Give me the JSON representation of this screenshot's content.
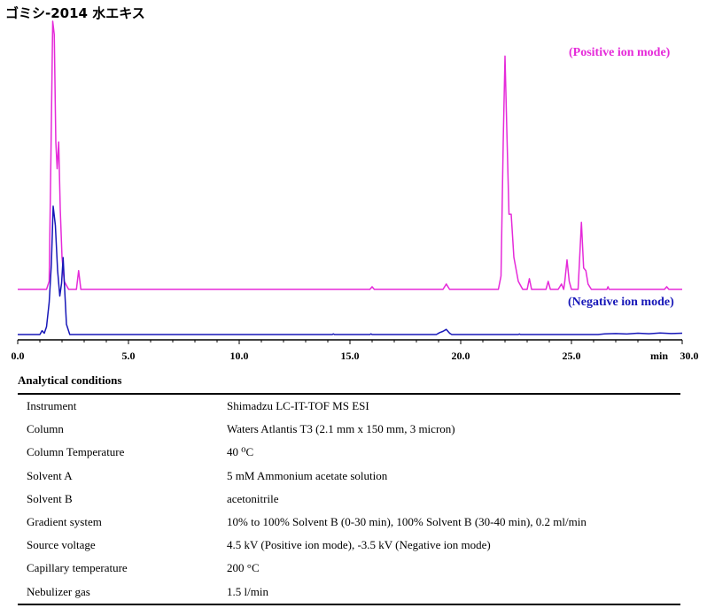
{
  "title": "ゴミシ-2014 水エキス",
  "chart_data": {
    "type": "line",
    "x_unit": "min",
    "xlim": [
      0.0,
      30.0
    ],
    "x_ticks": [
      "0.0",
      "5.0",
      "10.0",
      "15.0",
      "20.0",
      "25.0",
      "30.0"
    ],
    "y_ticks_shown": false,
    "series": [
      {
        "name": "(Positive ion mode)",
        "color": "#e52ad9",
        "baseline": 0.0,
        "points": [
          [
            0.0,
            0.0
          ],
          [
            1.3,
            0.0
          ],
          [
            1.42,
            0.03
          ],
          [
            1.5,
            0.5
          ],
          [
            1.58,
            1.0
          ],
          [
            1.65,
            0.95
          ],
          [
            1.72,
            0.55
          ],
          [
            1.78,
            0.45
          ],
          [
            1.85,
            0.55
          ],
          [
            1.92,
            0.3
          ],
          [
            2.0,
            0.12
          ],
          [
            2.1,
            0.03
          ],
          [
            2.3,
            0.0
          ],
          [
            2.65,
            0.0
          ],
          [
            2.75,
            0.07
          ],
          [
            2.85,
            0.0
          ],
          [
            15.9,
            0.0
          ],
          [
            16.0,
            0.01
          ],
          [
            16.1,
            0.0
          ],
          [
            19.2,
            0.0
          ],
          [
            19.35,
            0.02
          ],
          [
            19.5,
            0.0
          ],
          [
            21.7,
            0.0
          ],
          [
            21.82,
            0.05
          ],
          [
            21.92,
            0.55
          ],
          [
            22.0,
            0.87
          ],
          [
            22.08,
            0.6
          ],
          [
            22.18,
            0.28
          ],
          [
            22.28,
            0.28
          ],
          [
            22.4,
            0.12
          ],
          [
            22.6,
            0.03
          ],
          [
            22.8,
            0.0
          ],
          [
            23.0,
            0.0
          ],
          [
            23.1,
            0.04
          ],
          [
            23.2,
            0.0
          ],
          [
            23.85,
            0.0
          ],
          [
            23.95,
            0.03
          ],
          [
            24.05,
            0.0
          ],
          [
            24.4,
            0.0
          ],
          [
            24.55,
            0.02
          ],
          [
            24.65,
            0.0
          ],
          [
            24.7,
            0.03
          ],
          [
            24.8,
            0.11
          ],
          [
            24.9,
            0.03
          ],
          [
            25.0,
            0.0
          ],
          [
            25.3,
            0.0
          ],
          [
            25.45,
            0.25
          ],
          [
            25.55,
            0.08
          ],
          [
            25.65,
            0.07
          ],
          [
            25.75,
            0.02
          ],
          [
            25.9,
            0.0
          ],
          [
            26.6,
            0.0
          ],
          [
            26.65,
            0.01
          ],
          [
            26.7,
            0.0
          ],
          [
            29.2,
            0.0
          ],
          [
            29.3,
            0.01
          ],
          [
            29.4,
            0.0
          ],
          [
            30.0,
            0.0
          ]
        ]
      },
      {
        "name": "(Negative ion mode)",
        "color": "#1717b8",
        "baseline": 0.0,
        "points": [
          [
            0.0,
            0.0
          ],
          [
            1.0,
            0.0
          ],
          [
            1.1,
            0.03
          ],
          [
            1.2,
            0.01
          ],
          [
            1.3,
            0.06
          ],
          [
            1.42,
            0.25
          ],
          [
            1.52,
            0.55
          ],
          [
            1.6,
            1.0
          ],
          [
            1.7,
            0.85
          ],
          [
            1.8,
            0.5
          ],
          [
            1.9,
            0.3
          ],
          [
            1.98,
            0.4
          ],
          [
            2.05,
            0.6
          ],
          [
            2.12,
            0.35
          ],
          [
            2.2,
            0.08
          ],
          [
            2.35,
            0.0
          ],
          [
            14.2,
            0.0
          ],
          [
            14.25,
            0.005
          ],
          [
            14.3,
            0.0
          ],
          [
            15.9,
            0.0
          ],
          [
            15.95,
            0.005
          ],
          [
            16.0,
            0.0
          ],
          [
            18.9,
            0.0
          ],
          [
            19.05,
            0.015
          ],
          [
            19.2,
            0.025
          ],
          [
            19.35,
            0.04
          ],
          [
            19.5,
            0.01
          ],
          [
            19.6,
            0.0
          ],
          [
            22.6,
            0.0
          ],
          [
            22.65,
            0.004
          ],
          [
            22.7,
            0.0
          ],
          [
            26.2,
            0.0
          ],
          [
            26.5,
            0.005
          ],
          [
            27.0,
            0.008
          ],
          [
            27.5,
            0.004
          ],
          [
            28.0,
            0.01
          ],
          [
            28.5,
            0.006
          ],
          [
            29.0,
            0.012
          ],
          [
            29.5,
            0.008
          ],
          [
            30.0,
            0.01
          ]
        ]
      }
    ]
  },
  "conditions": {
    "heading": "Analytical conditions",
    "rows": [
      {
        "key": "Instrument",
        "value": "Shimadzu LC-IT-TOF MS ESI"
      },
      {
        "key": "Column",
        "value": "Waters Atlantis T3 (2.1 mm x 150 mm, 3 micron)"
      },
      {
        "key": "Column Temperature",
        "value": "40 ⁰C"
      },
      {
        "key": "Solvent A",
        "value": "5 mM Ammonium acetate solution"
      },
      {
        "key": "Solvent B",
        "value": "acetonitrile"
      },
      {
        "key": "Gradient system",
        "value": "10% to 100% Solvent B (0-30 min), 100% Solvent B (30-40 min), 0.2 ml/min"
      },
      {
        "key": "Source voltage",
        "value": "4.5 kV (Positive ion mode), -3.5 kV (Negative ion mode)"
      },
      {
        "key": "Capillary temperature",
        "value": "200 °C"
      },
      {
        "key": "Nebulizer gas",
        "value": "1.5 l/min"
      }
    ]
  }
}
